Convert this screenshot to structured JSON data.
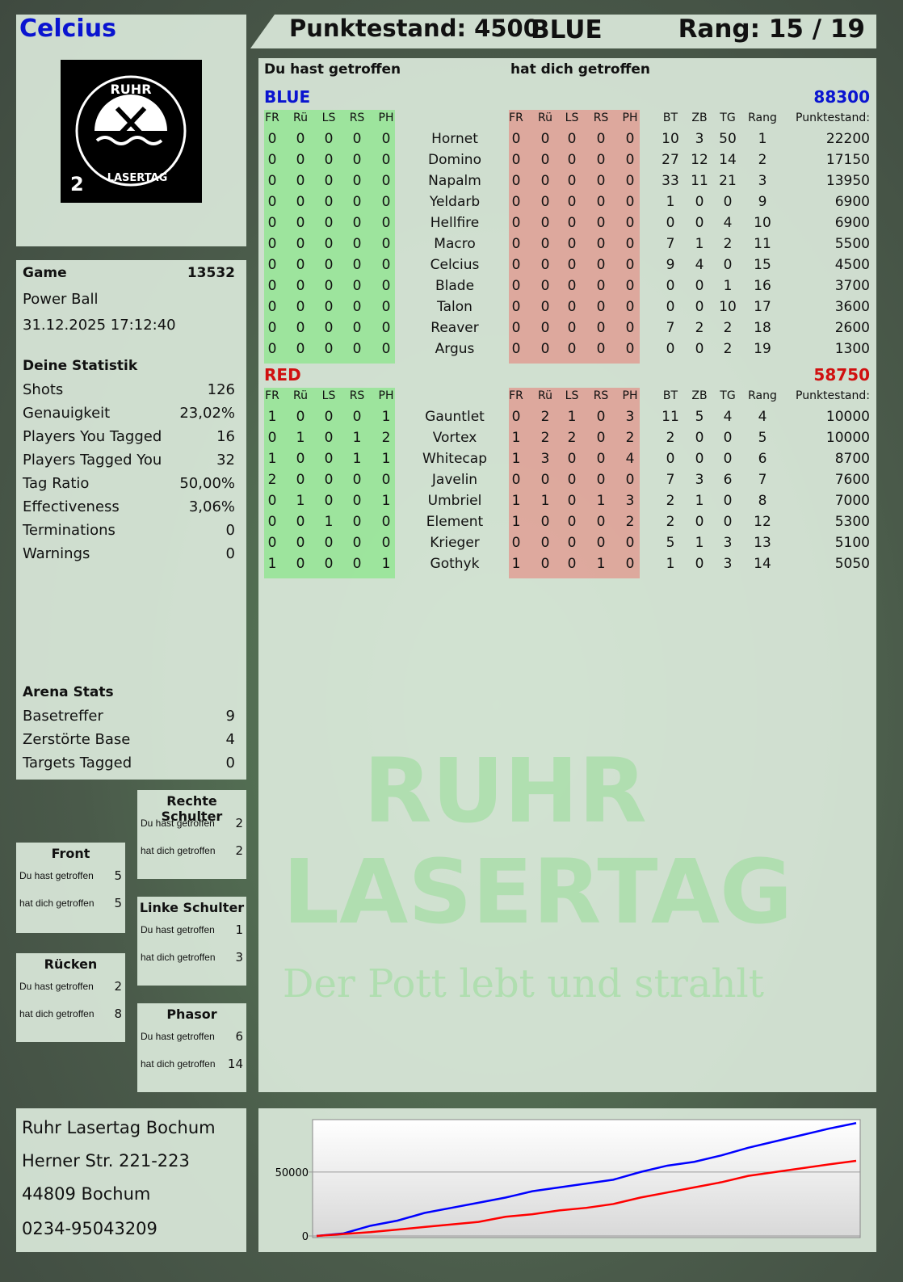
{
  "player": {
    "name": "Celcius",
    "score_label": "Punktestand: 4500",
    "team": "BLUE",
    "rank_label": "Rang: 15 / 19"
  },
  "logo": {
    "text_top": "RUHR",
    "text_bottom": "LASERTAG",
    "number": "2"
  },
  "watermark": {
    "line1": "RUHR",
    "line2": "LASERTAG",
    "line3": "Der Pott lebt und strahlt"
  },
  "game": {
    "label": "Game",
    "id": "13532",
    "mode": "Power Ball",
    "datetime": "31.12.2025 17:12:40"
  },
  "stats": {
    "title": "Deine Statistik",
    "items": [
      {
        "label": "Shots",
        "value": "126"
      },
      {
        "label": "Genauigkeit",
        "value": "23,02%"
      },
      {
        "label": "Players You Tagged",
        "value": "16"
      },
      {
        "label": "Players Tagged You",
        "value": "32"
      },
      {
        "label": "Tag Ratio",
        "value": "50,00%"
      },
      {
        "label": "Effectiveness",
        "value": "3,06%"
      },
      {
        "label": "Terminations",
        "value": "0"
      },
      {
        "label": "Warnings",
        "value": "0"
      }
    ]
  },
  "arena": {
    "title": "Arena Stats",
    "items": [
      {
        "label": "Basetreffer",
        "value": "9"
      },
      {
        "label": "Zerstörte Base",
        "value": "4"
      },
      {
        "label": "Targets Tagged",
        "value": "0"
      }
    ]
  },
  "hits": {
    "you_hit": "Du hast getroffen",
    "hit_you": "hat dich getroffen",
    "zones": [
      {
        "name": "Rechte Schulter",
        "you_hit": "2",
        "hit_you": "2"
      },
      {
        "name": "Front",
        "you_hit": "5",
        "hit_you": "5"
      },
      {
        "name": "Linke Schulter",
        "you_hit": "1",
        "hit_you": "3"
      },
      {
        "name": "Rücken",
        "you_hit": "2",
        "hit_you": "8"
      },
      {
        "name": "Phasor",
        "you_hit": "6",
        "hit_you": "14"
      }
    ]
  },
  "table": {
    "heading_you_hit": "Du hast getroffen",
    "heading_hit_you": "hat dich getroffen",
    "zone_cols": [
      "FR",
      "Rü",
      "LS",
      "RS",
      "PH"
    ],
    "stat_cols": [
      "BT",
      "ZB",
      "TG",
      "Rang"
    ],
    "score_col": "Punktestand:",
    "teams": [
      {
        "name": "BLUE",
        "total": "88300",
        "color": "#0a14d0",
        "rows": [
          {
            "name": "Hornet",
            "hit": [
              0,
              0,
              0,
              0,
              0
            ],
            "got": [
              0,
              0,
              0,
              0,
              0
            ],
            "bt": 10,
            "zb": 3,
            "tg": 50,
            "rang": 1,
            "score": 22200
          },
          {
            "name": "Domino",
            "hit": [
              0,
              0,
              0,
              0,
              0
            ],
            "got": [
              0,
              0,
              0,
              0,
              0
            ],
            "bt": 27,
            "zb": 12,
            "tg": 14,
            "rang": 2,
            "score": 17150
          },
          {
            "name": "Napalm",
            "hit": [
              0,
              0,
              0,
              0,
              0
            ],
            "got": [
              0,
              0,
              0,
              0,
              0
            ],
            "bt": 33,
            "zb": 11,
            "tg": 21,
            "rang": 3,
            "score": 13950
          },
          {
            "name": "Yeldarb",
            "hit": [
              0,
              0,
              0,
              0,
              0
            ],
            "got": [
              0,
              0,
              0,
              0,
              0
            ],
            "bt": 1,
            "zb": 0,
            "tg": 0,
            "rang": 9,
            "score": 6900
          },
          {
            "name": "Hellfire",
            "hit": [
              0,
              0,
              0,
              0,
              0
            ],
            "got": [
              0,
              0,
              0,
              0,
              0
            ],
            "bt": 0,
            "zb": 0,
            "tg": 4,
            "rang": 10,
            "score": 6900
          },
          {
            "name": "Macro",
            "hit": [
              0,
              0,
              0,
              0,
              0
            ],
            "got": [
              0,
              0,
              0,
              0,
              0
            ],
            "bt": 7,
            "zb": 1,
            "tg": 2,
            "rang": 11,
            "score": 5500
          },
          {
            "name": "Celcius",
            "hit": [
              0,
              0,
              0,
              0,
              0
            ],
            "got": [
              0,
              0,
              0,
              0,
              0
            ],
            "bt": 9,
            "zb": 4,
            "tg": 0,
            "rang": 15,
            "score": 4500
          },
          {
            "name": "Blade",
            "hit": [
              0,
              0,
              0,
              0,
              0
            ],
            "got": [
              0,
              0,
              0,
              0,
              0
            ],
            "bt": 0,
            "zb": 0,
            "tg": 1,
            "rang": 16,
            "score": 3700
          },
          {
            "name": "Talon",
            "hit": [
              0,
              0,
              0,
              0,
              0
            ],
            "got": [
              0,
              0,
              0,
              0,
              0
            ],
            "bt": 0,
            "zb": 0,
            "tg": 10,
            "rang": 17,
            "score": 3600
          },
          {
            "name": "Reaver",
            "hit": [
              0,
              0,
              0,
              0,
              0
            ],
            "got": [
              0,
              0,
              0,
              0,
              0
            ],
            "bt": 7,
            "zb": 2,
            "tg": 2,
            "rang": 18,
            "score": 2600
          },
          {
            "name": "Argus",
            "hit": [
              0,
              0,
              0,
              0,
              0
            ],
            "got": [
              0,
              0,
              0,
              0,
              0
            ],
            "bt": 0,
            "zb": 0,
            "tg": 2,
            "rang": 19,
            "score": 1300
          }
        ]
      },
      {
        "name": "RED",
        "total": "58750",
        "color": "#d01010",
        "rows": [
          {
            "name": "Gauntlet",
            "hit": [
              1,
              0,
              0,
              0,
              1
            ],
            "got": [
              0,
              2,
              1,
              0,
              3
            ],
            "bt": 11,
            "zb": 5,
            "tg": 4,
            "rang": 4,
            "score": 10000
          },
          {
            "name": "Vortex",
            "hit": [
              0,
              1,
              0,
              1,
              2
            ],
            "got": [
              1,
              2,
              2,
              0,
              2
            ],
            "bt": 2,
            "zb": 0,
            "tg": 0,
            "rang": 5,
            "score": 10000
          },
          {
            "name": "Whitecap",
            "hit": [
              1,
              0,
              0,
              1,
              1
            ],
            "got": [
              1,
              3,
              0,
              0,
              4
            ],
            "bt": 0,
            "zb": 0,
            "tg": 0,
            "rang": 6,
            "score": 8700
          },
          {
            "name": "Javelin",
            "hit": [
              2,
              0,
              0,
              0,
              0
            ],
            "got": [
              0,
              0,
              0,
              0,
              0
            ],
            "bt": 7,
            "zb": 3,
            "tg": 6,
            "rang": 7,
            "score": 7600
          },
          {
            "name": "Umbriel",
            "hit": [
              0,
              1,
              0,
              0,
              1
            ],
            "got": [
              1,
              1,
              0,
              1,
              3
            ],
            "bt": 2,
            "zb": 1,
            "tg": 0,
            "rang": 8,
            "score": 7000
          },
          {
            "name": "Element",
            "hit": [
              0,
              0,
              1,
              0,
              0
            ],
            "got": [
              1,
              0,
              0,
              0,
              2
            ],
            "bt": 2,
            "zb": 0,
            "tg": 0,
            "rang": 12,
            "score": 5300
          },
          {
            "name": "Krieger",
            "hit": [
              0,
              0,
              0,
              0,
              0
            ],
            "got": [
              0,
              0,
              0,
              0,
              0
            ],
            "bt": 5,
            "zb": 1,
            "tg": 3,
            "rang": 13,
            "score": 5100
          },
          {
            "name": "Gothyk",
            "hit": [
              1,
              0,
              0,
              0,
              1
            ],
            "got": [
              1,
              0,
              0,
              1,
              0
            ],
            "bt": 1,
            "zb": 0,
            "tg": 3,
            "rang": 14,
            "score": 5050
          }
        ]
      }
    ]
  },
  "address": {
    "lines": [
      "Ruhr Lasertag Bochum",
      "Herner Str. 221-223",
      "44809 Bochum",
      "0234-95043209"
    ]
  },
  "chart_data": {
    "type": "line",
    "ylim": [
      0,
      91000
    ],
    "yticks": [
      "0",
      "50000"
    ],
    "grid": true,
    "x": [
      0,
      0.05,
      0.1,
      0.15,
      0.2,
      0.25,
      0.3,
      0.35,
      0.4,
      0.45,
      0.5,
      0.55,
      0.6,
      0.65,
      0.7,
      0.75,
      0.8,
      0.85,
      0.9,
      0.95,
      1
    ],
    "series": [
      {
        "color": "#0000ff",
        "values": [
          0,
          2000,
          8000,
          12000,
          18000,
          22000,
          26000,
          30000,
          35000,
          38000,
          41000,
          44000,
          50000,
          55000,
          58000,
          63000,
          69000,
          74000,
          79000,
          84000,
          88300
        ]
      },
      {
        "color": "#ff0000",
        "values": [
          0,
          1500,
          3000,
          5000,
          7000,
          9000,
          11000,
          15000,
          17000,
          20000,
          22000,
          25000,
          30000,
          34000,
          38000,
          42000,
          47000,
          50000,
          53000,
          56000,
          58750
        ]
      }
    ]
  }
}
